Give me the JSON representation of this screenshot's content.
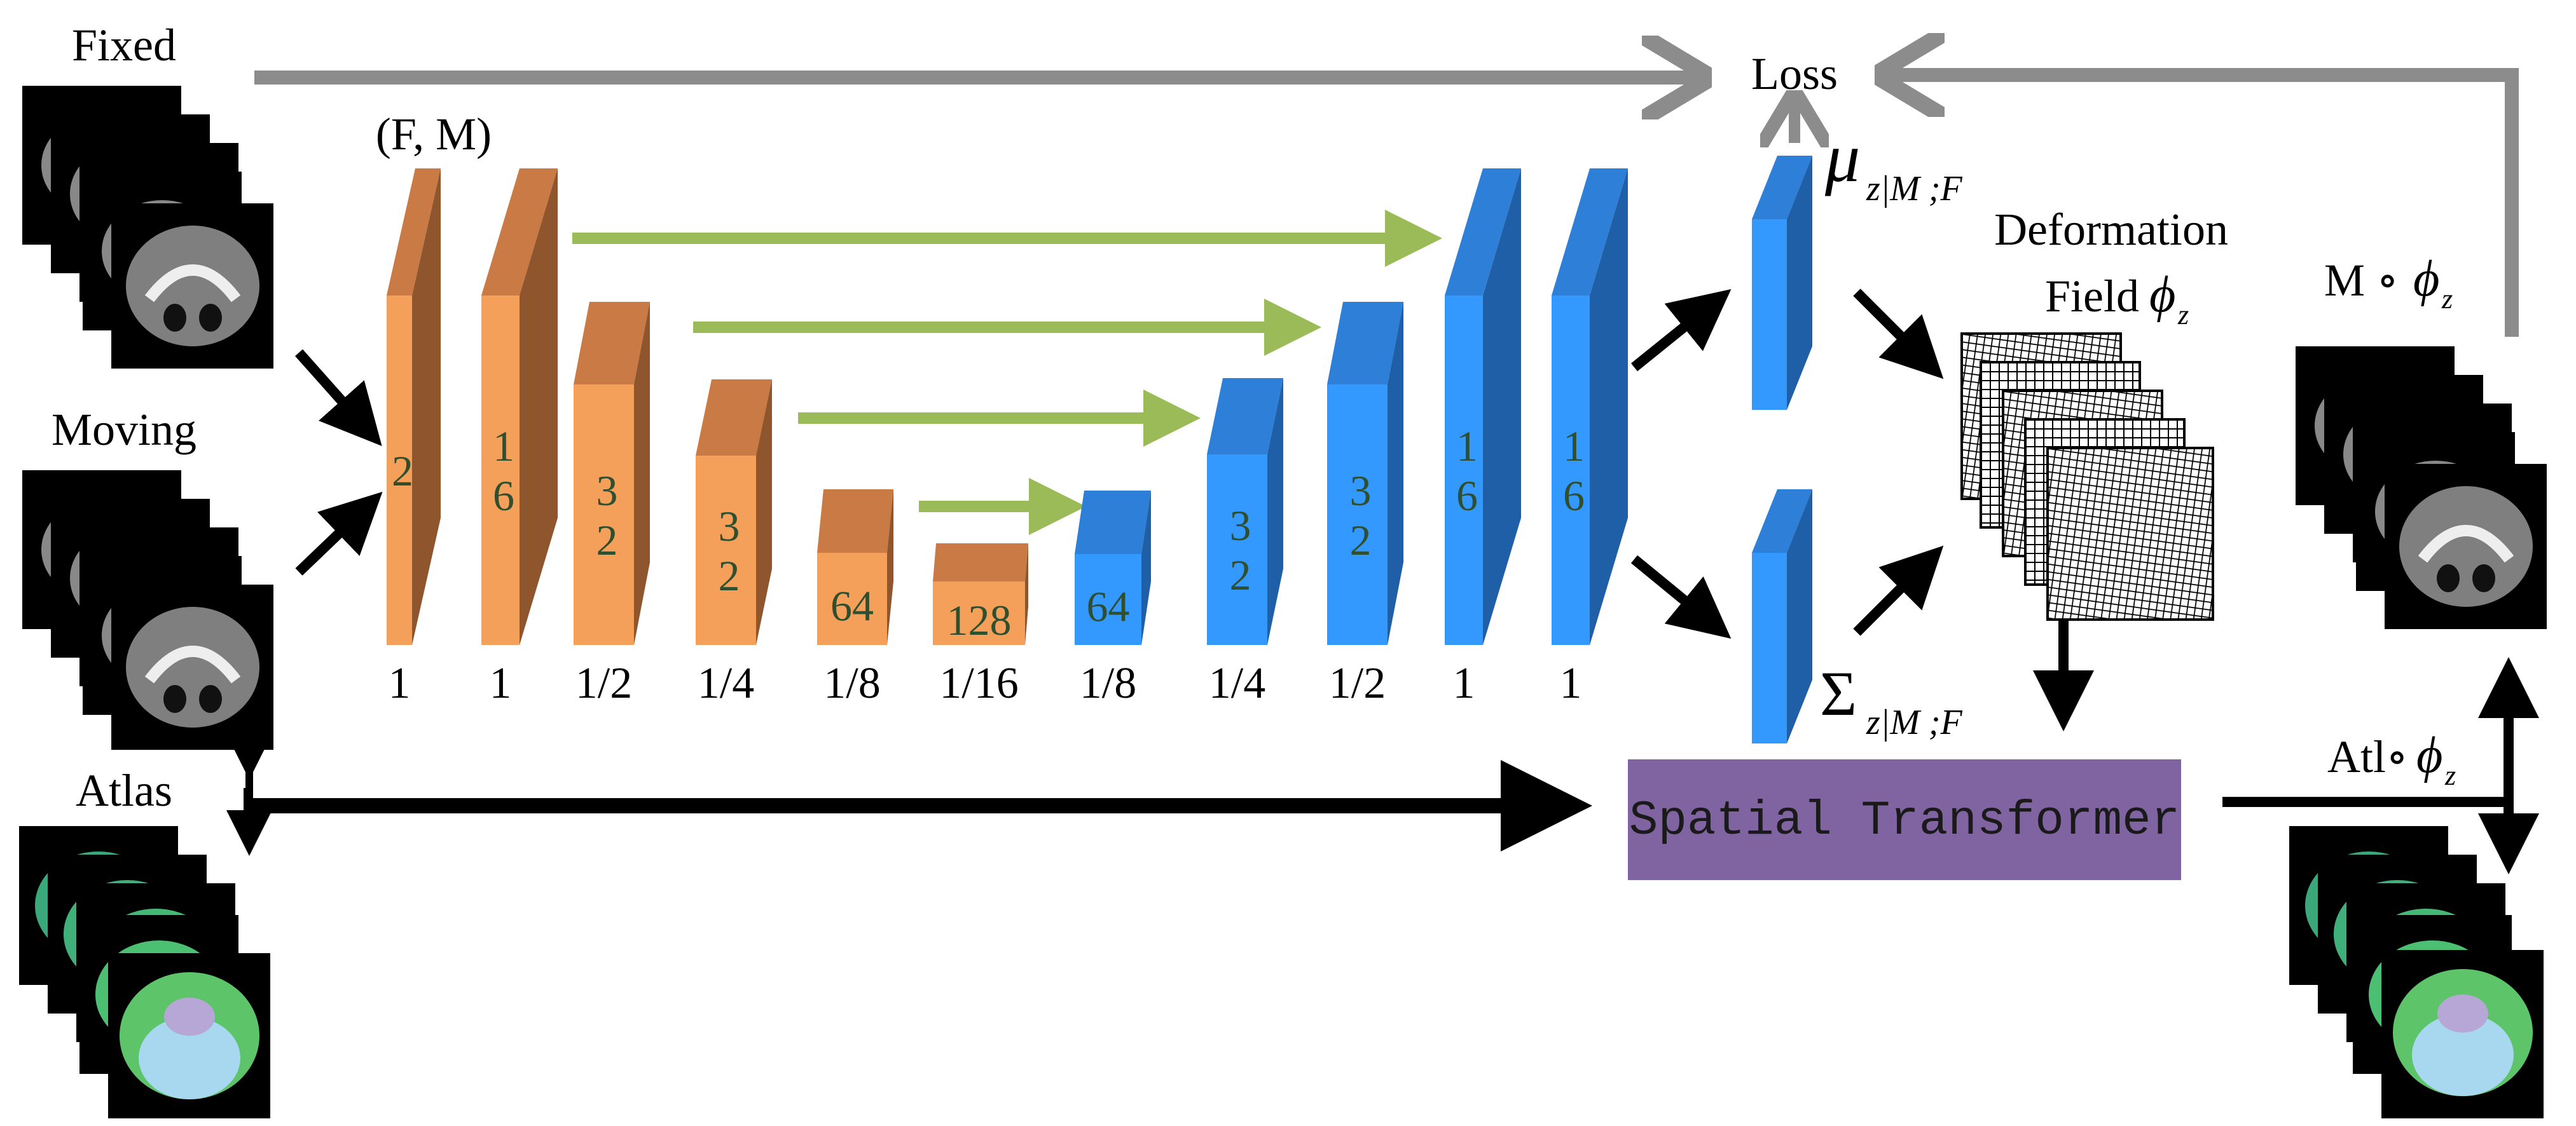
{
  "labels": {
    "fixed": "Fixed",
    "moving": "Moving",
    "atlas": "Atlas",
    "fm": "(F, M)",
    "loss": "Loss",
    "mu": "μ",
    "mu_sub": "z|M ;F",
    "sigma": "Σ",
    "sigma_sub": "z|M ;F",
    "deformation_line1": "Deformation",
    "deformation_line2": "Field",
    "phi": "ϕ",
    "phi_sub": "z",
    "warped_moving": "M ∘",
    "warped_atlas": "Atl∘",
    "spatial_transformer": "Spatial Transformer"
  },
  "encoder": [
    {
      "channels": "2",
      "scale": "1"
    },
    {
      "channels": "16",
      "scale": "1"
    },
    {
      "channels": "32",
      "scale": "1/2"
    },
    {
      "channels": "32",
      "scale": "1/4"
    },
    {
      "channels": "64",
      "scale": "1/8"
    },
    {
      "channels": "128",
      "scale": "1/16"
    }
  ],
  "decoder": [
    {
      "channels": "64",
      "scale": "1/8"
    },
    {
      "channels": "32",
      "scale": "1/4"
    },
    {
      "channels": "32",
      "scale": "1/2"
    },
    {
      "channels": "16",
      "scale": "1"
    },
    {
      "channels": "16",
      "scale": "1"
    }
  ],
  "colors": {
    "encoder_front": "#f5a05a",
    "encoder_side": "#8f552c",
    "encoder_top": "#c97a45",
    "decoder_front": "#3399ff",
    "decoder_side": "#1f5fa8",
    "decoder_top": "#2d7fd8",
    "skip_arrow": "#9bbb59",
    "grey_arrow": "#8c8c8c",
    "transformer_box": "#8064a2",
    "channel_text": "#2f4f2f"
  }
}
